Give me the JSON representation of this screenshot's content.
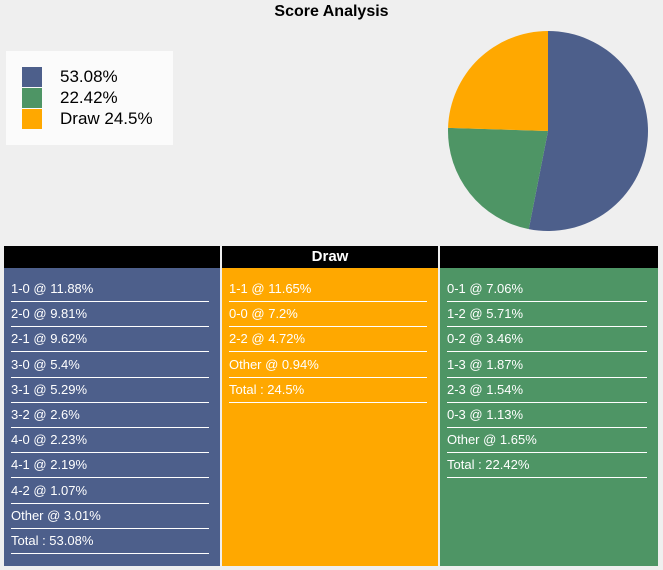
{
  "title": "Score Analysis",
  "colors": {
    "home": "#4d5f8b",
    "draw": "#ffa800",
    "away": "#4e9565"
  },
  "legend": [
    {
      "label": "53.08%",
      "color": "#4d5f8b"
    },
    {
      "label": "22.42%",
      "color": "#4e9565"
    },
    {
      "label": "Draw 24.5%",
      "color": "#ffa800"
    }
  ],
  "chart_data": {
    "type": "pie",
    "title": "Score Analysis",
    "slices": [
      {
        "label": "53.08%",
        "value": 53.08,
        "color": "#4d5f8b"
      },
      {
        "label": "22.42%",
        "value": 22.42,
        "color": "#4e9565"
      },
      {
        "label": "Draw 24.5%",
        "value": 24.5,
        "color": "#ffa800"
      }
    ],
    "legend_position": "top-left"
  },
  "columns": [
    {
      "key": "home",
      "header": "",
      "color": "#4d5f8b",
      "rows": [
        "1-0 @ 11.88%",
        "2-0 @ 9.81%",
        "2-1 @ 9.62%",
        "3-0 @ 5.4%",
        "3-1 @ 5.29%",
        "3-2 @ 2.6%",
        "4-0 @ 2.23%",
        "4-1 @ 2.19%",
        "4-2 @ 1.07%",
        "Other @ 3.01%",
        "Total : 53.08%"
      ]
    },
    {
      "key": "draw",
      "header": "Draw",
      "color": "#ffa800",
      "rows": [
        "1-1 @ 11.65%",
        "0-0 @ 7.2%",
        "2-2 @ 4.72%",
        "Other @ 0.94%",
        "Total : 24.5%"
      ]
    },
    {
      "key": "away",
      "header": "",
      "color": "#4e9565",
      "rows": [
        "0-1 @ 7.06%",
        "1-2 @ 5.71%",
        "0-2 @ 3.46%",
        "1-3 @ 1.87%",
        "2-3 @ 1.54%",
        "0-3 @ 1.13%",
        "Other @ 1.65%",
        "Total : 22.42%"
      ]
    }
  ]
}
